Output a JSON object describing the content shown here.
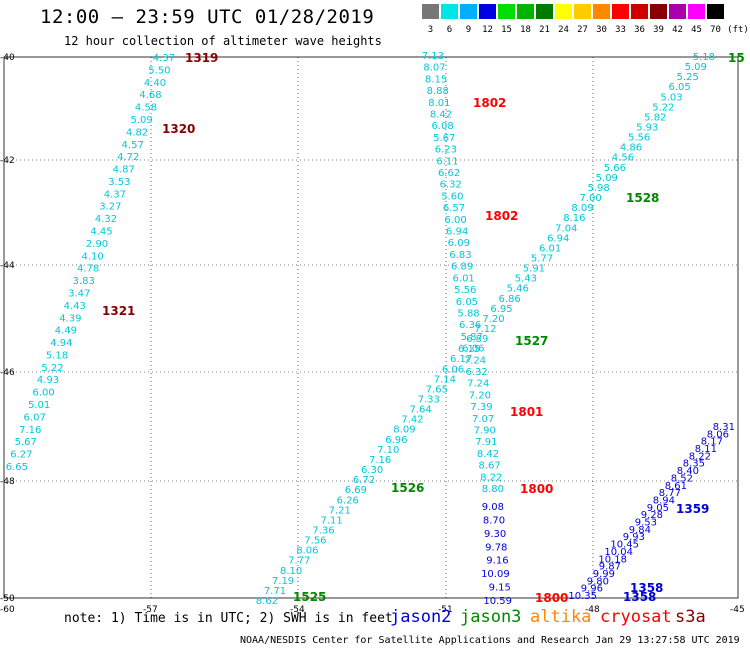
{
  "header": {
    "title": "12:00 – 23:59 UTC 01/28/2019",
    "subtitle": "12 hour collection of altimeter wave heights"
  },
  "colorbar": {
    "colors": [
      "#777777",
      "#00e5e5",
      "#00b0ff",
      "#0000e0",
      "#00dd00",
      "#00b400",
      "#007a00",
      "#ffff00",
      "#ffcc00",
      "#ff8800",
      "#ff0000",
      "#cc0000",
      "#880000",
      "#aa00aa",
      "#ff00ff",
      "#000000"
    ],
    "labels": [
      "3",
      "6",
      "9",
      "12",
      "15",
      "18",
      "21",
      "24",
      "27",
      "30",
      "33",
      "36",
      "39",
      "42",
      "45",
      "70"
    ],
    "unit": "(ft)"
  },
  "map": {
    "lat_labels": [
      "-40",
      "-42",
      "-44",
      "-46",
      "-48",
      "-50"
    ],
    "lon_labels": [
      "-60",
      "-57",
      "-54",
      "-51",
      "-48",
      "-45"
    ]
  },
  "satellites": {
    "jason2": "jason2",
    "jason3": "jason3",
    "altika": "altika",
    "cryosat": "cryosat",
    "s3a": "s3a"
  },
  "footer": {
    "note": "note: 1) Time is in UTC; 2) SWH is in feet",
    "credit": "NOAA/NESDIS Center for Satellite Applications and Research   Jan 29 13:27:58 UTC 2019"
  },
  "tracks": [
    {
      "sat": "jason3",
      "color": "#00c8d8",
      "values": [
        "4.37",
        "5.50",
        "4.40",
        "4.68",
        "4.58",
        "5.09",
        "4.82",
        "4.57",
        "4.72",
        "4.87",
        "3.53",
        "4.37",
        "3.27",
        "4.32",
        "4.45",
        "2.90",
        "4.10",
        "4.78",
        "3.83",
        "3.47",
        "4.43",
        "4.39",
        "4.49",
        "4.94",
        "5.18",
        "5.22",
        "4.93",
        "6.00",
        "5.01",
        "6.07",
        "7.16",
        "5.67",
        "6.27",
        "6.65"
      ]
    },
    {
      "sat": "jason3",
      "color": "#00c8d8",
      "values": [
        "7.13",
        "8.07",
        "8.15",
        "8.88",
        "8.01",
        "8.42",
        "6.08",
        "5.67",
        "6.23",
        "6.11",
        "6.62",
        "6.32",
        "5.60",
        "6.57",
        "6.00",
        "6.94",
        "6.09",
        "6.83",
        "6.89",
        "6.01",
        "5.56",
        "6.05",
        "5.88",
        "6.36",
        "5.87",
        "6.06",
        "7.24",
        "6.32",
        "7.24",
        "7.20",
        "7.39",
        "7.07",
        "7.90",
        "7.91",
        "8.42",
        "8.67",
        "8.22",
        "8.80"
      ]
    },
    {
      "sat": "jason2",
      "color": "#0000dd",
      "values": [
        "9.08",
        "8.70",
        "9.30",
        "9.78",
        "9.16",
        "10.09",
        "9.15",
        "10.59"
      ]
    },
    {
      "sat": "jason3",
      "color": "#00c8d8",
      "values": [
        "5.18",
        "5.09",
        "5.25",
        "6.05",
        "5.03",
        "5.22",
        "5.82",
        "5.93",
        "5.56",
        "4.86",
        "4.56",
        "5.66",
        "5.09",
        "5.98",
        "7.00",
        "8.09",
        "8.16",
        "7.04",
        "6.94",
        "6.01",
        "5.77",
        "5.91",
        "5.43",
        "5.46",
        "6.86",
        "6.95",
        "7.20",
        "7.12",
        "6.89",
        "6.15",
        "6.17",
        "6.06",
        "7.14",
        "7.65",
        "7.33",
        "7.64",
        "7.42",
        "8.09",
        "6.96",
        "7.10",
        "7.16",
        "6.30",
        "6.72",
        "6.69",
        "6.26",
        "7.21",
        "7.11",
        "7.36",
        "7.56",
        "8.06",
        "7.77",
        "8.10",
        "7.19",
        "7.71",
        "8.62"
      ]
    },
    {
      "sat": "jason2",
      "color": "#0000dd",
      "values": [
        "10.35",
        "9.96",
        "9.80",
        "9.99",
        "9.87",
        "10.18",
        "10.04",
        "10.45",
        "9.93",
        "9.84",
        "9.53",
        "9.28",
        "9.05",
        "8.94",
        "8.77",
        "8.61",
        "8.52",
        "8.40",
        "8.35",
        "8.22",
        "8.11",
        "8.17",
        "8.06",
        "8.31"
      ]
    }
  ],
  "time_labels": [
    {
      "text": "1319",
      "color": "#880000"
    },
    {
      "text": "1320",
      "color": "#880000"
    },
    {
      "text": "1321",
      "color": "#880000"
    },
    {
      "text": "1802",
      "color": "#ff0000"
    },
    {
      "text": "1802",
      "color": "#ff0000"
    },
    {
      "text": "1801",
      "color": "#ff0000"
    },
    {
      "text": "1800",
      "color": "#ff0000"
    },
    {
      "text": "1800",
      "color": "#ff0000"
    },
    {
      "text": "1528",
      "color": "#008800"
    },
    {
      "text": "1527",
      "color": "#008800"
    },
    {
      "text": "1526",
      "color": "#008800"
    },
    {
      "text": "1525",
      "color": "#008800"
    },
    {
      "text": "1359",
      "color": "#0000dd"
    },
    {
      "text": "1358",
      "color": "#0000dd"
    },
    {
      "text": "1358",
      "color": "#0000dd"
    },
    {
      "text": "15",
      "color": "#008800"
    }
  ]
}
